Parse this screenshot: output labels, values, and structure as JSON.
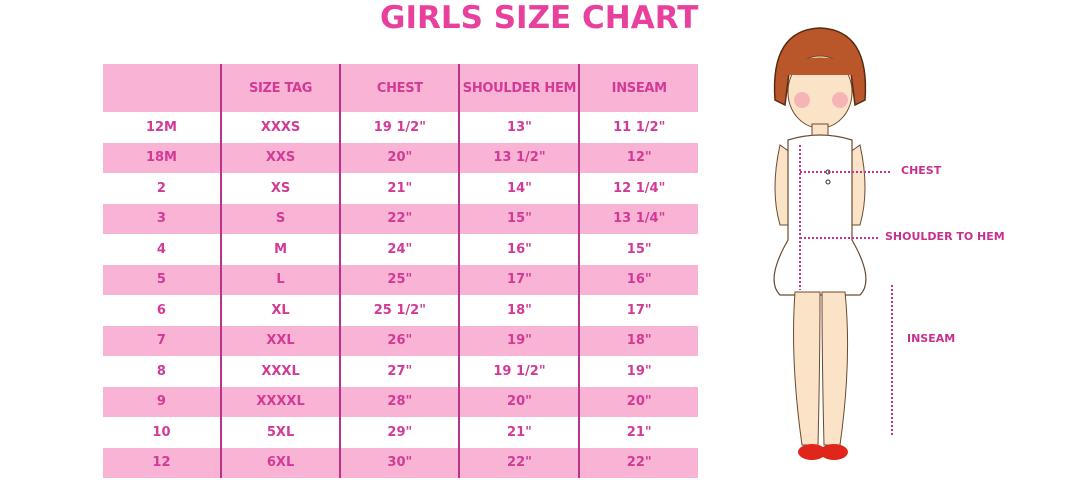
{
  "title": "GIRLS SIZE CHART",
  "table": {
    "headers": [
      "",
      "SIZE TAG",
      "CHEST",
      "SHOULDER HEM",
      "INSEAM"
    ],
    "rows": [
      [
        "12M",
        "XXXS",
        "19 1/2\"",
        "13\"",
        "11 1/2\""
      ],
      [
        "18M",
        "XXS",
        "20\"",
        "13 1/2\"",
        "12\""
      ],
      [
        "2",
        "XS",
        "21\"",
        "14\"",
        "12 1/4\""
      ],
      [
        "3",
        "S",
        "22\"",
        "15\"",
        "13 1/4\""
      ],
      [
        "4",
        "M",
        "24\"",
        "16\"",
        "15\""
      ],
      [
        "5",
        "L",
        "25\"",
        "17\"",
        "16\""
      ],
      [
        "6",
        "XL",
        "25 1/2\"",
        "18\"",
        "17\""
      ],
      [
        "7",
        "XXL",
        "26\"",
        "19\"",
        "18\""
      ],
      [
        "8",
        "XXXL",
        "27\"",
        "19 1/2\"",
        "19\""
      ],
      [
        "9",
        "XXXXL",
        "28\"",
        "20\"",
        "20\""
      ],
      [
        "10",
        "5XL",
        "29\"",
        "21\"",
        "21\""
      ],
      [
        "12",
        "6XL",
        "30\"",
        "22\"",
        "22\""
      ]
    ]
  },
  "diagram": {
    "chest_label": "CHEST",
    "shoulder_label": "SHOULDER TO HEM",
    "inseam_label": "INSEAM"
  },
  "colors": {
    "accent": "#e8409d",
    "row_pink": "#f9b3d5",
    "text": "#d23a96"
  }
}
